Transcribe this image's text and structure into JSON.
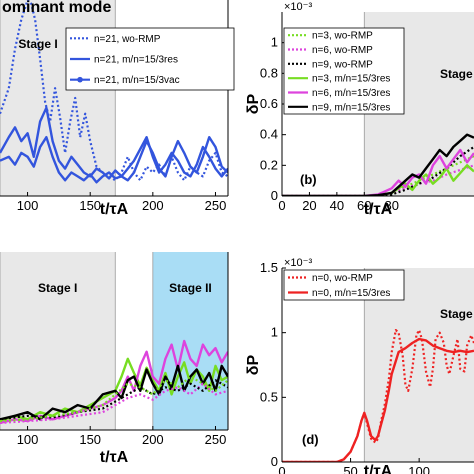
{
  "chart_data": [
    {
      "id": "a",
      "type": "line",
      "title": "ominant mode",
      "xlabel": "t/τA",
      "xlim": [
        78,
        260
      ],
      "ylim": [
        0,
        1
      ],
      "xticks": [
        100,
        150,
        200,
        250
      ],
      "stages": [
        {
          "label": "Stage I",
          "x0": 78,
          "x1": 170,
          "color": "#e8e8e8"
        }
      ],
      "series": [
        {
          "name": "n=21, wo-RMP",
          "color": "#3355dd",
          "style": "dotted",
          "x": [
            78,
            85,
            90,
            95,
            100,
            103,
            106,
            110,
            114,
            118,
            122,
            126,
            130,
            134,
            138,
            142,
            146,
            150,
            155,
            160,
            165,
            170,
            175,
            180,
            185,
            190,
            195,
            200,
            205,
            210,
            215,
            220,
            225,
            230,
            235,
            240,
            245,
            250,
            255,
            260
          ],
          "y": [
            0.42,
            0.55,
            0.75,
            0.9,
            1.0,
            0.98,
            0.9,
            0.7,
            0.48,
            0.38,
            0.55,
            0.4,
            0.22,
            0.38,
            0.5,
            0.3,
            0.42,
            0.28,
            0.15,
            0.12,
            0.1,
            0.08,
            0.12,
            0.2,
            0.12,
            0.08,
            0.15,
            0.12,
            0.16,
            0.1,
            0.2,
            0.12,
            0.08,
            0.15,
            0.12,
            0.1,
            0.18,
            0.22,
            0.12,
            0.1
          ]
        },
        {
          "name": "n=21, m/n=15/3res",
          "color": "#3355dd",
          "style": "solid",
          "x": [
            78,
            85,
            90,
            95,
            100,
            105,
            110,
            115,
            120,
            125,
            130,
            135,
            140,
            145,
            150,
            155,
            160,
            165,
            170,
            175,
            180,
            185,
            190,
            195,
            200,
            205,
            210,
            215,
            220,
            225,
            230,
            235,
            240,
            245,
            250,
            255,
            260
          ],
          "y": [
            0.18,
            0.2,
            0.16,
            0.22,
            0.2,
            0.15,
            0.25,
            0.3,
            0.2,
            0.12,
            0.08,
            0.12,
            0.1,
            0.08,
            0.11,
            0.07,
            0.1,
            0.12,
            0.09,
            0.1,
            0.08,
            0.12,
            0.2,
            0.28,
            0.22,
            0.14,
            0.1,
            0.2,
            0.28,
            0.22,
            0.15,
            0.12,
            0.2,
            0.3,
            0.25,
            0.15,
            0.12
          ]
        },
        {
          "name": "n=21, m/n=15/3vac",
          "color": "#3355dd",
          "style": "solid-marker",
          "x": [
            78,
            85,
            90,
            95,
            100,
            105,
            110,
            115,
            120,
            125,
            130,
            135,
            140,
            145,
            150,
            155,
            160,
            165,
            170,
            175,
            180,
            185,
            190,
            195,
            200,
            205,
            210,
            215,
            220,
            225,
            230,
            235,
            240,
            245,
            250,
            255,
            260
          ],
          "y": [
            0.22,
            0.3,
            0.35,
            0.28,
            0.32,
            0.2,
            0.38,
            0.45,
            0.28,
            0.18,
            0.14,
            0.2,
            0.16,
            0.12,
            0.1,
            0.14,
            0.12,
            0.09,
            0.13,
            0.1,
            0.14,
            0.18,
            0.24,
            0.3,
            0.2,
            0.12,
            0.16,
            0.22,
            0.18,
            0.12,
            0.1,
            0.16,
            0.25,
            0.2,
            0.14,
            0.1,
            0.14
          ]
        }
      ]
    },
    {
      "id": "b",
      "type": "line",
      "ylabel": "δP",
      "xlabel": "t/τA",
      "exponent": "×10⁻³",
      "xlim": [
        0,
        140
      ],
      "ylim": [
        0,
        1.2
      ],
      "xticks": [
        0,
        20,
        40,
        60,
        80
      ],
      "yticks": [
        0,
        0.2,
        0.4,
        0.6,
        0.8,
        1
      ],
      "panel_label": "(b)",
      "stages": [
        {
          "label": "Stage II",
          "x0": 60,
          "x1": 140,
          "color": "#e8e8e8"
        }
      ],
      "series": [
        {
          "name": "n=3, wo-RMP",
          "color": "#77dd22",
          "style": "dotted",
          "x": [
            0,
            60,
            70,
            80,
            90,
            100,
            110,
            120,
            130,
            140
          ],
          "y": [
            0,
            0,
            0.005,
            0.02,
            0.06,
            0.1,
            0.14,
            0.18,
            0.22,
            0.26
          ]
        },
        {
          "name": "n=6, wo-RMP",
          "color": "#dd44dd",
          "style": "dotted",
          "x": [
            0,
            60,
            70,
            80,
            90,
            100,
            110,
            120,
            130,
            140
          ],
          "y": [
            0,
            0,
            0.005,
            0.02,
            0.05,
            0.08,
            0.1,
            0.14,
            0.17,
            0.2
          ]
        },
        {
          "name": "n=9, wo-RMP",
          "color": "#000000",
          "style": "dotted",
          "x": [
            0,
            60,
            70,
            80,
            90,
            100,
            110,
            120,
            130,
            140
          ],
          "y": [
            0,
            0,
            0.004,
            0.01,
            0.04,
            0.08,
            0.12,
            0.18,
            0.26,
            0.32
          ]
        },
        {
          "name": "n=3, m/n=15/3res",
          "color": "#77dd22",
          "style": "solid",
          "x": [
            0,
            60,
            70,
            80,
            85,
            90,
            95,
            100,
            105,
            110,
            115,
            120,
            125,
            130,
            135,
            140
          ],
          "y": [
            0,
            0,
            0.005,
            0.02,
            0.05,
            0.08,
            0.04,
            0.1,
            0.14,
            0.08,
            0.12,
            0.18,
            0.1,
            0.15,
            0.2,
            0.16
          ]
        },
        {
          "name": "n=6, m/n=15/3res",
          "color": "#dd44dd",
          "style": "solid",
          "x": [
            0,
            60,
            70,
            80,
            85,
            90,
            95,
            100,
            105,
            110,
            115,
            120,
            125,
            130,
            135,
            140
          ],
          "y": [
            0,
            0,
            0.01,
            0.05,
            0.1,
            0.06,
            0.12,
            0.14,
            0.08,
            0.2,
            0.26,
            0.18,
            0.24,
            0.3,
            0.22,
            0.28
          ]
        },
        {
          "name": "n=9, m/n=15/3res",
          "color": "#000000",
          "style": "solid",
          "x": [
            0,
            60,
            70,
            80,
            85,
            90,
            95,
            100,
            105,
            110,
            115,
            120,
            125,
            130,
            135,
            140
          ],
          "y": [
            0,
            0,
            0.005,
            0.02,
            0.06,
            0.1,
            0.14,
            0.12,
            0.18,
            0.24,
            0.3,
            0.26,
            0.32,
            0.36,
            0.4,
            0.38
          ]
        }
      ]
    },
    {
      "id": "c",
      "type": "line",
      "xlabel": "t/τA",
      "xlim": [
        78,
        260
      ],
      "ylim": [
        0,
        1
      ],
      "xticks": [
        100,
        150,
        200,
        250
      ],
      "stages": [
        {
          "label": "Stage I",
          "x0": 78,
          "x1": 170,
          "color": "#e8e8e8"
        },
        {
          "label": "Stage II",
          "x0": 200,
          "x1": 260,
          "color": "#a9ddf5"
        }
      ],
      "series": [
        {
          "name": "",
          "color": "#77dd22",
          "style": "solid",
          "x": [
            78,
            90,
            100,
            110,
            120,
            130,
            140,
            150,
            160,
            170,
            175,
            180,
            185,
            190,
            195,
            200,
            205,
            210,
            215,
            220,
            225,
            230,
            235,
            240,
            245,
            250,
            255,
            260
          ],
          "y": [
            0.05,
            0.08,
            0.06,
            0.1,
            0.08,
            0.12,
            0.1,
            0.14,
            0.18,
            0.22,
            0.3,
            0.4,
            0.32,
            0.25,
            0.35,
            0.28,
            0.22,
            0.32,
            0.2,
            0.3,
            0.38,
            0.26,
            0.34,
            0.3,
            0.22,
            0.36,
            0.28,
            0.3
          ]
        },
        {
          "name": "",
          "color": "#dd44dd",
          "style": "solid",
          "x": [
            78,
            90,
            100,
            110,
            120,
            130,
            140,
            150,
            160,
            170,
            175,
            180,
            185,
            190,
            195,
            200,
            205,
            210,
            215,
            220,
            225,
            230,
            235,
            240,
            245,
            250,
            255,
            260
          ],
          "y": [
            0.04,
            0.06,
            0.05,
            0.08,
            0.06,
            0.08,
            0.1,
            0.12,
            0.14,
            0.18,
            0.22,
            0.3,
            0.22,
            0.36,
            0.44,
            0.3,
            0.26,
            0.4,
            0.48,
            0.34,
            0.5,
            0.4,
            0.36,
            0.48,
            0.42,
            0.46,
            0.38,
            0.44
          ]
        },
        {
          "name": "",
          "color": "#000000",
          "style": "solid",
          "x": [
            78,
            90,
            100,
            110,
            120,
            130,
            140,
            150,
            160,
            170,
            175,
            180,
            185,
            190,
            195,
            200,
            205,
            210,
            215,
            220,
            225,
            230,
            235,
            240,
            245,
            250,
            255,
            260
          ],
          "y": [
            0.06,
            0.08,
            0.1,
            0.06,
            0.12,
            0.1,
            0.14,
            0.12,
            0.2,
            0.22,
            0.18,
            0.28,
            0.3,
            0.22,
            0.34,
            0.26,
            0.2,
            0.3,
            0.24,
            0.36,
            0.22,
            0.3,
            0.34,
            0.26,
            0.32,
            0.22,
            0.36,
            0.3
          ]
        },
        {
          "name": "",
          "color": "#dd44dd",
          "style": "dotted",
          "x": [
            78,
            100,
            120,
            140,
            160,
            170,
            180,
            190,
            200,
            210,
            220,
            230,
            240,
            250,
            260
          ],
          "y": [
            0.04,
            0.05,
            0.06,
            0.08,
            0.1,
            0.14,
            0.18,
            0.2,
            0.17,
            0.22,
            0.24,
            0.2,
            0.26,
            0.2,
            0.22
          ]
        },
        {
          "name": "",
          "color": "#000000",
          "style": "dotted",
          "x": [
            78,
            100,
            120,
            140,
            160,
            170,
            180,
            190,
            200,
            210,
            220,
            230,
            240,
            250,
            260
          ],
          "y": [
            0.06,
            0.08,
            0.07,
            0.1,
            0.12,
            0.16,
            0.2,
            0.24,
            0.2,
            0.24,
            0.22,
            0.26,
            0.22,
            0.28,
            0.24
          ]
        },
        {
          "name": "",
          "color": "#77dd22",
          "style": "dotted",
          "x": [
            78,
            100,
            120,
            140,
            160,
            170,
            180,
            190,
            200,
            210,
            220,
            230,
            240,
            250,
            260
          ],
          "y": [
            0.05,
            0.06,
            0.08,
            0.1,
            0.14,
            0.2,
            0.26,
            0.24,
            0.2,
            0.28,
            0.24,
            0.3,
            0.26,
            0.22,
            0.28
          ]
        }
      ]
    },
    {
      "id": "d",
      "type": "line",
      "ylabel": "δP",
      "xlabel": "t/τA",
      "exponent": "×10⁻³",
      "xlim": [
        0,
        140
      ],
      "ylim": [
        0,
        1.5
      ],
      "xticks": [
        0,
        50,
        100
      ],
      "yticks": [
        0,
        0.5,
        1,
        1.5
      ],
      "panel_label": "(d)",
      "stages": [
        {
          "label": "Stage I",
          "x0": 60,
          "x1": 140,
          "color": "#e8e8e8"
        }
      ],
      "series": [
        {
          "name": "n=0, wo-RMP",
          "color": "#ee2222",
          "style": "dotted",
          "x": [
            0,
            40,
            45,
            50,
            55,
            58,
            60,
            62,
            65,
            68,
            70,
            72,
            75,
            78,
            80,
            83,
            85,
            88,
            90,
            92,
            95,
            98,
            100,
            102,
            105,
            108,
            110,
            112,
            115,
            118,
            120,
            122,
            125,
            128,
            130,
            133,
            135,
            138,
            140
          ],
          "y": [
            0,
            0,
            0.02,
            0.08,
            0.2,
            0.32,
            0.38,
            0.3,
            0.18,
            0.15,
            0.18,
            0.3,
            0.45,
            0.65,
            0.85,
            1.02,
            1.0,
            0.82,
            0.6,
            0.55,
            0.72,
            0.98,
            1.02,
            0.95,
            0.7,
            0.58,
            0.72,
            0.95,
            1.0,
            0.92,
            0.75,
            0.68,
            0.82,
            0.95,
            0.72,
            0.7,
            0.9,
            0.98,
            0.92
          ]
        },
        {
          "name": "n=0, m/n=15/3res",
          "color": "#ee2222",
          "style": "solid",
          "x": [
            0,
            40,
            45,
            50,
            55,
            58,
            60,
            62,
            65,
            68,
            70,
            72,
            75,
            78,
            80,
            85,
            90,
            95,
            100,
            105,
            110,
            115,
            120,
            125,
            130,
            135,
            140
          ],
          "y": [
            0,
            0,
            0.02,
            0.08,
            0.2,
            0.32,
            0.38,
            0.32,
            0.2,
            0.17,
            0.2,
            0.28,
            0.4,
            0.56,
            0.68,
            0.85,
            0.88,
            0.92,
            0.95,
            0.94,
            0.9,
            0.88,
            0.86,
            0.85,
            0.86,
            0.85,
            0.86
          ]
        }
      ]
    }
  ]
}
